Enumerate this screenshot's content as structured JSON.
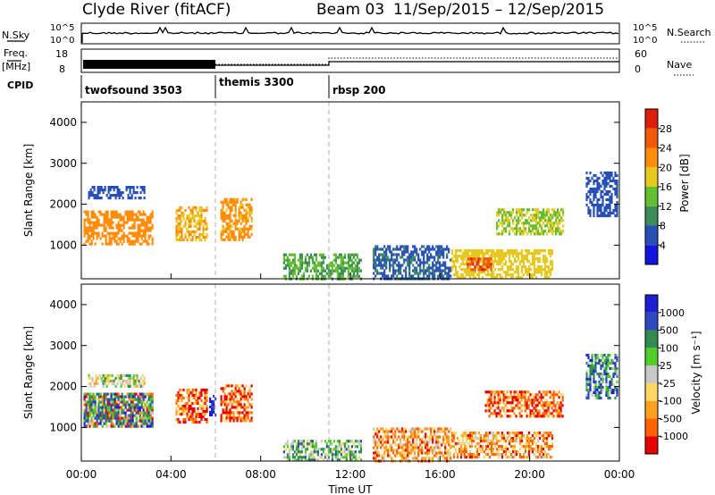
{
  "header": {
    "station": "Clyde River (fitACF)",
    "beam": "Beam 03",
    "period": "11/Sep/2015 – 12/Sep/2015"
  },
  "sky_panel": {
    "label": "N.Sky",
    "left_ticks": [
      "10^5",
      "10^0"
    ],
    "right_ticks": [
      "10^5",
      "10^0"
    ],
    "right_label": "N.Search"
  },
  "freq_panel": {
    "label_line1": "Freq.",
    "label_line2": "[MHz]",
    "left_ticks": [
      "18",
      "8"
    ],
    "right_ticks": [
      "60",
      "0"
    ],
    "right_label": "Nave"
  },
  "cpid": {
    "label": "CPID",
    "segments": [
      {
        "name": "twofsound 3503",
        "start_hour": 0
      },
      {
        "name": "themis 3300",
        "start_hour": 6
      },
      {
        "name": "rbsp 200",
        "start_hour": 11
      }
    ]
  },
  "colors": {
    "power_scale": [
      "#1414dc",
      "#2850b4",
      "#3c8c5a",
      "#64be32",
      "#e6c81e",
      "#ff8c0a",
      "#f05a0a",
      "#dc1e0a"
    ],
    "velocity_scale": [
      "#e60000",
      "#ff6400",
      "#ffa01e",
      "#ffd764",
      "#c8c8c8",
      "#50cd28",
      "#328c50",
      "#2d4bbe",
      "#1e1ed2"
    ]
  },
  "chart_data": [
    {
      "type": "heatmap",
      "panel": "power",
      "ylabel": "Slant Range [km]",
      "yticks": [
        "1000",
        "2000",
        "3000",
        "4000"
      ],
      "ylim": [
        180,
        4500
      ],
      "xlim_hours": [
        0,
        24
      ],
      "colorbar_label": "Power [dB]",
      "colorbar_ticks": [
        "4",
        "8",
        "12",
        "16",
        "20",
        "24",
        "28"
      ],
      "colorbar_range": [
        0,
        32
      ],
      "regions": [
        {
          "t0": 0.1,
          "t1": 3.2,
          "r0": 1050,
          "r1": 1850,
          "value": 22
        },
        {
          "t0": 0.3,
          "t1": 2.8,
          "r0": 2150,
          "r1": 2450,
          "value": 6
        },
        {
          "t0": 4.2,
          "t1": 5.6,
          "r0": 1150,
          "r1": 1950,
          "value": 20
        },
        {
          "t0": 6.2,
          "t1": 7.6,
          "r0": 1150,
          "r1": 2150,
          "value": 21
        },
        {
          "t0": 9.0,
          "t1": 12.5,
          "r0": 200,
          "r1": 800,
          "value": 12
        },
        {
          "t0": 13.0,
          "t1": 16.5,
          "r0": 200,
          "r1": 1000,
          "value": 7
        },
        {
          "t0": 16.5,
          "t1": 21.0,
          "r0": 200,
          "r1": 900,
          "value": 18
        },
        {
          "t0": 17.2,
          "t1": 18.3,
          "r0": 400,
          "r1": 700,
          "value": 27
        },
        {
          "t0": 18.5,
          "t1": 21.5,
          "r0": 1300,
          "r1": 1900,
          "value": 16
        },
        {
          "t0": 22.5,
          "t1": 23.9,
          "r0": 1700,
          "r1": 2800,
          "value": 6
        }
      ]
    },
    {
      "type": "heatmap",
      "panel": "velocity",
      "ylabel": "Slant Range [km]",
      "yticks": [
        "1000",
        "2000",
        "3000",
        "4000"
      ],
      "ylim": [
        180,
        4500
      ],
      "xlim_hours": [
        0,
        24
      ],
      "xlabel": "Time UT",
      "xticks": [
        "00:00",
        "04:00",
        "08:00",
        "12:00",
        "16:00",
        "20:00",
        "00:00"
      ],
      "colorbar_label": "Velocity [m s⁻¹]",
      "colorbar_ticks": [
        "-1000",
        "-500",
        "-100",
        "-25",
        "25",
        "100",
        "500",
        "1000"
      ],
      "regions": [
        {
          "t0": 0.1,
          "t1": 3.2,
          "r0": 1050,
          "r1": 1850,
          "value": 1
        },
        {
          "t0": 0.1,
          "t1": 3.2,
          "r0": 1050,
          "r1": 1850,
          "value": 6
        },
        {
          "t0": 0.3,
          "t1": 2.8,
          "r0": 2000,
          "r1": 2300,
          "value": 4
        },
        {
          "t0": 4.2,
          "t1": 5.6,
          "r0": 1150,
          "r1": 1950,
          "value": 1
        },
        {
          "t0": 5.7,
          "t1": 6.0,
          "r0": 1300,
          "r1": 1800,
          "value": 8
        },
        {
          "t0": 6.2,
          "t1": 7.6,
          "r0": 1150,
          "r1": 2050,
          "value": 1
        },
        {
          "t0": 9.0,
          "t1": 12.5,
          "r0": 200,
          "r1": 700,
          "value": 5
        },
        {
          "t0": 13.0,
          "t1": 16.5,
          "r0": 200,
          "r1": 1000,
          "value": 2
        },
        {
          "t0": 16.5,
          "t1": 21.0,
          "r0": 300,
          "r1": 900,
          "value": 2
        },
        {
          "t0": 18.0,
          "t1": 21.5,
          "r0": 1300,
          "r1": 1900,
          "value": 1
        },
        {
          "t0": 22.5,
          "t1": 23.9,
          "r0": 1700,
          "r1": 2800,
          "value": 6
        }
      ]
    }
  ]
}
